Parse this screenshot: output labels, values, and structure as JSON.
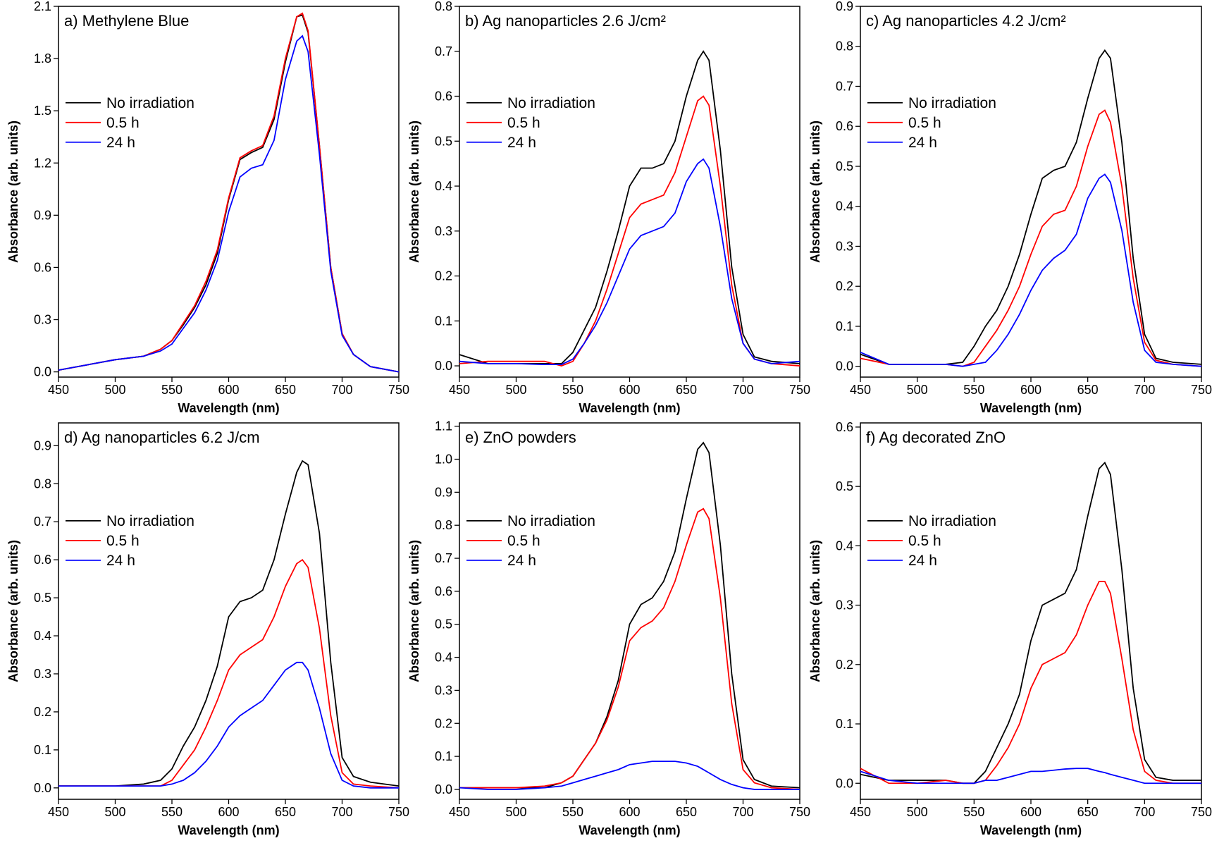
{
  "chart_data": [
    {
      "type": "line",
      "title": "a) Methylene Blue",
      "x_label": "Wavelength (nm)",
      "y_label": "Absorbance (arb. units)",
      "legend": "upper left",
      "grid": false,
      "x": [
        450,
        475,
        500,
        525,
        540,
        550,
        560,
        570,
        580,
        590,
        600,
        610,
        620,
        630,
        640,
        650,
        660,
        665,
        670,
        680,
        690,
        700,
        710,
        725,
        750
      ],
      "xlim": [
        450,
        750
      ],
      "xticks": [
        450,
        500,
        550,
        600,
        650,
        700,
        750
      ],
      "ylim": [
        -0.03,
        2.1
      ],
      "yticks": [
        {
          "value": 0,
          "label": "0.0"
        },
        0.3,
        0.6,
        0.9,
        1.2,
        1.5,
        1.8,
        2.1
      ],
      "series": [
        {
          "name": "No irradiation",
          "color": "#000000",
          "values": [
            0.01,
            0.04,
            0.07,
            0.09,
            0.13,
            0.18,
            0.27,
            0.37,
            0.5,
            0.68,
            0.99,
            1.22,
            1.26,
            1.29,
            1.45,
            1.78,
            2.04,
            2.05,
            1.95,
            1.3,
            0.6,
            0.22,
            0.1,
            0.03,
            0
          ]
        },
        {
          "name": "0.5 h",
          "color": "#ff0000",
          "values": [
            0.01,
            0.04,
            0.07,
            0.09,
            0.13,
            0.18,
            0.28,
            0.38,
            0.52,
            0.7,
            1.0,
            1.23,
            1.27,
            1.3,
            1.47,
            1.8,
            2.04,
            2.06,
            1.96,
            1.3,
            0.6,
            0.22,
            0.1,
            0.03,
            0
          ]
        },
        {
          "name": "24 h",
          "color": "#0000ff",
          "values": [
            0.01,
            0.04,
            0.07,
            0.09,
            0.12,
            0.16,
            0.25,
            0.34,
            0.47,
            0.64,
            0.92,
            1.12,
            1.17,
            1.19,
            1.33,
            1.68,
            1.9,
            1.93,
            1.84,
            1.25,
            0.58,
            0.21,
            0.1,
            0.03,
            0
          ]
        }
      ]
    },
    {
      "type": "line",
      "title": "b) Ag nanoparticles 2.6 J/cm²",
      "x_label": "Wavelength (nm)",
      "y_label": "Absorbance (arb. units)",
      "legend": "upper left",
      "grid": false,
      "x": [
        450,
        475,
        500,
        525,
        540,
        550,
        560,
        570,
        580,
        590,
        600,
        610,
        620,
        630,
        640,
        650,
        660,
        665,
        670,
        680,
        690,
        700,
        710,
        725,
        750
      ],
      "xlim": [
        450,
        750
      ],
      "xticks": [
        450,
        500,
        550,
        600,
        650,
        700,
        750
      ],
      "ylim": [
        -0.025,
        0.8
      ],
      "yticks": [
        {
          "value": 0,
          "label": "0.0"
        },
        0.1,
        0.2,
        0.3,
        0.4,
        0.5,
        0.6,
        0.7,
        0.8
      ],
      "series": [
        {
          "name": "No irradiation",
          "color": "#000000",
          "values": [
            0.025,
            0.005,
            0.005,
            0.005,
            0.005,
            0.03,
            0.08,
            0.13,
            0.21,
            0.3,
            0.4,
            0.44,
            0.44,
            0.45,
            0.5,
            0.6,
            0.68,
            0.7,
            0.68,
            0.48,
            0.22,
            0.07,
            0.02,
            0.01,
            0.005
          ]
        },
        {
          "name": "0.5 h",
          "color": "#ff0000",
          "values": [
            0.005,
            0.01,
            0.01,
            0.01,
            0,
            0.01,
            0.05,
            0.1,
            0.17,
            0.25,
            0.33,
            0.36,
            0.37,
            0.38,
            0.43,
            0.51,
            0.59,
            0.6,
            0.58,
            0.4,
            0.18,
            0.05,
            0.015,
            0.005,
            0
          ]
        },
        {
          "name": "24 h",
          "color": "#0000ff",
          "values": [
            0.01,
            0.005,
            0.005,
            0.003,
            0.003,
            0.015,
            0.05,
            0.09,
            0.14,
            0.2,
            0.26,
            0.29,
            0.3,
            0.31,
            0.34,
            0.41,
            0.45,
            0.46,
            0.44,
            0.31,
            0.15,
            0.05,
            0.015,
            0.005,
            0.01
          ]
        }
      ]
    },
    {
      "type": "line",
      "title": "c) Ag nanoparticles 4.2 J/cm²",
      "x_label": "Wavelength (nm)",
      "y_label": "Absorbance (arb. units)",
      "legend": "upper left",
      "grid": false,
      "x": [
        450,
        475,
        500,
        525,
        540,
        550,
        560,
        570,
        580,
        590,
        600,
        610,
        620,
        630,
        640,
        650,
        660,
        665,
        670,
        680,
        690,
        700,
        710,
        725,
        750
      ],
      "xlim": [
        450,
        750
      ],
      "xticks": [
        450,
        500,
        550,
        600,
        650,
        700,
        750
      ],
      "ylim": [
        -0.027,
        0.9
      ],
      "yticks": [
        {
          "value": 0,
          "label": "0.0"
        },
        0.1,
        0.2,
        0.3,
        0.4,
        0.5,
        0.6,
        0.7,
        0.8,
        0.9
      ],
      "series": [
        {
          "name": "No irradiation",
          "color": "#000000",
          "values": [
            0.03,
            0.005,
            0.005,
            0.005,
            0.01,
            0.05,
            0.1,
            0.14,
            0.2,
            0.28,
            0.38,
            0.47,
            0.49,
            0.5,
            0.56,
            0.67,
            0.77,
            0.79,
            0.77,
            0.56,
            0.27,
            0.08,
            0.02,
            0.01,
            0.005
          ]
        },
        {
          "name": "0.5 h",
          "color": "#ff0000",
          "values": [
            0.02,
            0.005,
            0.005,
            0.005,
            0,
            0.01,
            0.05,
            0.09,
            0.14,
            0.2,
            0.28,
            0.35,
            0.38,
            0.39,
            0.45,
            0.55,
            0.63,
            0.64,
            0.61,
            0.45,
            0.22,
            0.06,
            0.015,
            0.005,
            0
          ]
        },
        {
          "name": "24 h",
          "color": "#0000ff",
          "values": [
            0.035,
            0.005,
            0.005,
            0.005,
            0,
            0.005,
            0.01,
            0.04,
            0.08,
            0.13,
            0.19,
            0.24,
            0.27,
            0.29,
            0.33,
            0.42,
            0.47,
            0.48,
            0.46,
            0.34,
            0.16,
            0.04,
            0.01,
            0.005,
            0
          ]
        }
      ]
    },
    {
      "type": "line",
      "title": "d) Ag nanoparticles 6.2 J/cm",
      "x_label": "Wavelength (nm)",
      "y_label": "Absorbance (arb. units)",
      "legend": "upper left",
      "grid": false,
      "x": [
        450,
        475,
        500,
        525,
        540,
        550,
        560,
        570,
        580,
        590,
        600,
        610,
        620,
        630,
        640,
        650,
        660,
        665,
        670,
        680,
        690,
        700,
        710,
        725,
        750
      ],
      "xlim": [
        450,
        750
      ],
      "xticks": [
        450,
        500,
        550,
        600,
        650,
        700,
        750
      ],
      "ylim": [
        -0.03,
        0.96
      ],
      "yticks": [
        {
          "value": 0,
          "label": "0.0"
        },
        0.1,
        0.2,
        0.3,
        0.4,
        0.5,
        0.6,
        0.7,
        0.8,
        0.9
      ],
      "series": [
        {
          "name": "No irradiation",
          "color": "#000000",
          "values": [
            0.005,
            0.005,
            0.005,
            0.01,
            0.02,
            0.05,
            0.11,
            0.16,
            0.23,
            0.32,
            0.45,
            0.49,
            0.5,
            0.52,
            0.6,
            0.72,
            0.83,
            0.86,
            0.85,
            0.67,
            0.33,
            0.08,
            0.03,
            0.015,
            0.005
          ]
        },
        {
          "name": "0.5 h",
          "color": "#ff0000",
          "values": [
            0.005,
            0.005,
            0.005,
            0.005,
            0.005,
            0.02,
            0.06,
            0.1,
            0.16,
            0.23,
            0.31,
            0.35,
            0.37,
            0.39,
            0.45,
            0.53,
            0.59,
            0.6,
            0.58,
            0.42,
            0.19,
            0.04,
            0.01,
            0.005,
            0
          ]
        },
        {
          "name": "24 h",
          "color": "#0000ff",
          "values": [
            0.005,
            0.005,
            0.005,
            0.005,
            0.005,
            0.01,
            0.02,
            0.04,
            0.07,
            0.11,
            0.16,
            0.19,
            0.21,
            0.23,
            0.27,
            0.31,
            0.33,
            0.33,
            0.31,
            0.21,
            0.09,
            0.02,
            0.005,
            0,
            0
          ]
        }
      ]
    },
    {
      "type": "line",
      "title": "e) ZnO powders",
      "x_label": "Wavelength (nm)",
      "y_label": "Absorbance (arb. units)",
      "legend": "upper left",
      "grid": false,
      "x": [
        450,
        475,
        500,
        525,
        540,
        550,
        560,
        570,
        580,
        590,
        600,
        610,
        620,
        630,
        640,
        650,
        660,
        665,
        670,
        680,
        690,
        700,
        710,
        725,
        750
      ],
      "xlim": [
        450,
        750
      ],
      "xticks": [
        450,
        500,
        550,
        600,
        650,
        700,
        750
      ],
      "ylim": [
        -0.03,
        1.11
      ],
      "yticks": [
        {
          "value": 0,
          "label": "0.0"
        },
        0.1,
        0.2,
        0.3,
        0.4,
        0.5,
        0.6,
        0.7,
        0.8,
        0.9,
        {
          "value": 1,
          "label": "1.0"
        },
        1.1
      ],
      "series": [
        {
          "name": "No irradiation",
          "color": "#000000",
          "values": [
            0.005,
            0.005,
            0.005,
            0.005,
            0.02,
            0.04,
            0.09,
            0.14,
            0.22,
            0.33,
            0.5,
            0.56,
            0.58,
            0.63,
            0.72,
            0.88,
            1.03,
            1.05,
            1.02,
            0.74,
            0.35,
            0.09,
            0.03,
            0.01,
            0.005
          ]
        },
        {
          "name": "0.5 h",
          "color": "#ff0000",
          "values": [
            0.005,
            0.005,
            0.005,
            0.01,
            0.02,
            0.04,
            0.09,
            0.14,
            0.21,
            0.31,
            0.45,
            0.49,
            0.51,
            0.55,
            0.63,
            0.74,
            0.84,
            0.85,
            0.82,
            0.58,
            0.26,
            0.06,
            0.02,
            0.005,
            0
          ]
        },
        {
          "name": "24 h",
          "color": "#0000ff",
          "values": [
            0.005,
            0,
            0,
            0.005,
            0.01,
            0.02,
            0.03,
            0.04,
            0.05,
            0.06,
            0.075,
            0.08,
            0.085,
            0.085,
            0.085,
            0.08,
            0.07,
            0.06,
            0.05,
            0.03,
            0.015,
            0.005,
            0,
            0,
            0
          ]
        }
      ]
    },
    {
      "type": "line",
      "title": "f) Ag decorated ZnO",
      "x_label": "Wavelength (nm)",
      "y_label": "Absorbance (arb. units)",
      "legend": "upper left",
      "grid": false,
      "x": [
        450,
        475,
        500,
        525,
        540,
        550,
        560,
        570,
        580,
        590,
        600,
        610,
        620,
        630,
        640,
        650,
        660,
        665,
        670,
        680,
        690,
        700,
        710,
        725,
        750
      ],
      "xlim": [
        450,
        750
      ],
      "xticks": [
        450,
        500,
        550,
        600,
        650,
        700,
        750
      ],
      "ylim": [
        -0.027,
        0.607
      ],
      "yticks": [
        {
          "value": 0,
          "label": "0.0"
        },
        0.1,
        0.2,
        0.3,
        0.4,
        0.5,
        0.6
      ],
      "series": [
        {
          "name": "No irradiation",
          "color": "#000000",
          "values": [
            0.015,
            0.005,
            0.005,
            0.005,
            0,
            0,
            0.02,
            0.06,
            0.1,
            0.15,
            0.24,
            0.3,
            0.31,
            0.32,
            0.36,
            0.45,
            0.53,
            0.54,
            0.52,
            0.36,
            0.16,
            0.04,
            0.01,
            0.005,
            0.005
          ]
        },
        {
          "name": "0.5 h",
          "color": "#ff0000",
          "values": [
            0.025,
            0,
            0,
            0.005,
            0,
            0,
            0.005,
            0.03,
            0.06,
            0.1,
            0.16,
            0.2,
            0.21,
            0.22,
            0.25,
            0.3,
            0.34,
            0.34,
            0.32,
            0.21,
            0.09,
            0.02,
            0.005,
            0,
            0
          ]
        },
        {
          "name": "24 h",
          "color": "#0000ff",
          "values": [
            0.02,
            0.005,
            0,
            0,
            0,
            0,
            0.005,
            0.005,
            0.01,
            0.015,
            0.02,
            0.02,
            0.022,
            0.024,
            0.025,
            0.025,
            0.02,
            0.018,
            0.015,
            0.01,
            0.005,
            0,
            0,
            0,
            0
          ]
        }
      ]
    }
  ]
}
